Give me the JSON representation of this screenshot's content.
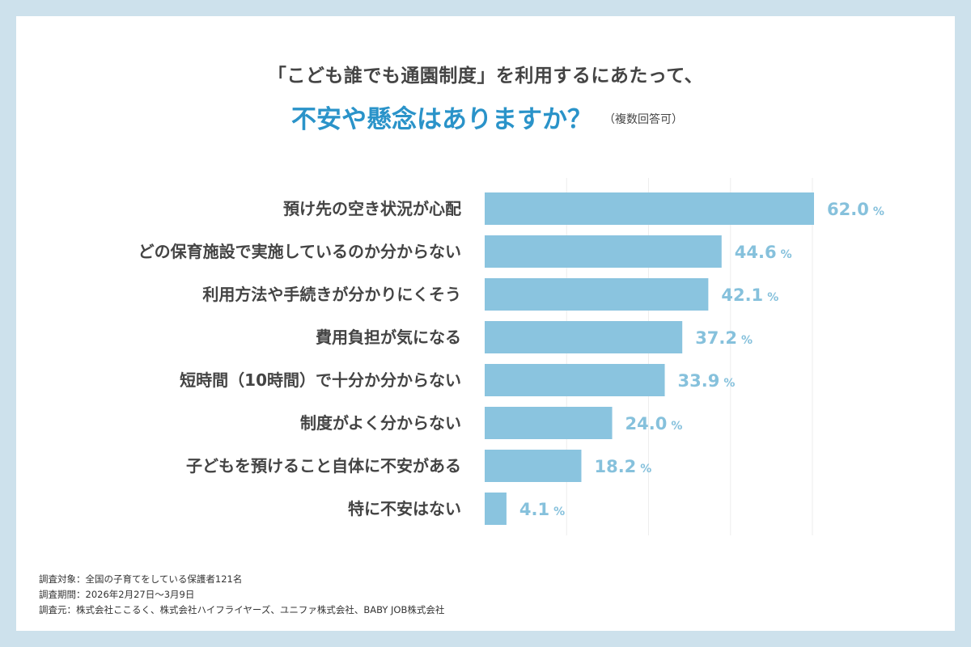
{
  "title_line1": "「こども誰でも通園制度」を利用するにあたって、",
  "title_line2": "不安や懸念はありますか？",
  "title_note": "（複数回答可）",
  "colors": {
    "bar": "#8ac4df",
    "value_label": "#86c1dc",
    "title_accent": "#2a93c9",
    "frame": "#cde1ec"
  },
  "chart_data": {
    "type": "bar",
    "orientation": "horizontal",
    "categories": [
      "預け先の空き状況が心配",
      "どの保育施設で実施しているのか分からない",
      "利用方法や手続きが分かりにくそう",
      "費用負担が気になる",
      "短時間（10時間）で十分か分からない",
      "制度がよく分からない",
      "子どもを預けること自体に不安がある",
      "特に不安はない"
    ],
    "values": [
      62.0,
      44.6,
      42.1,
      37.2,
      33.9,
      24.0,
      18.2,
      4.1
    ],
    "value_labels": [
      "62.0",
      "44.6",
      "42.1",
      "37.2",
      "33.9",
      "24.0",
      "18.2",
      "4.1"
    ],
    "unit": "%",
    "grid": true
  },
  "footer": [
    "調査対象：全国の子育てをしている保護者121名",
    "調査期間：2026年2月27日〜3月9日",
    "調査元：株式会社ここるく、株式会社ハイフライヤーズ、ユニファ株式会社、BABY JOB株式会社"
  ]
}
